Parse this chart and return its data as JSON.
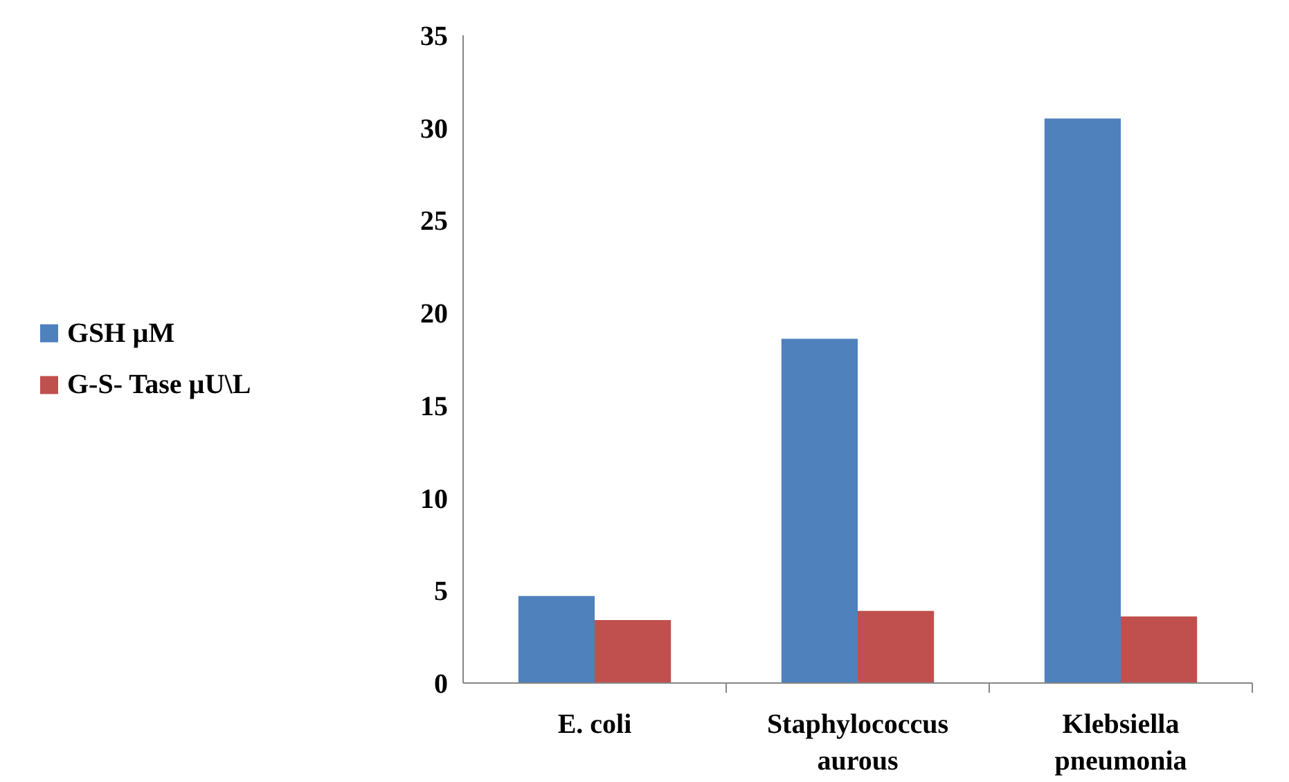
{
  "chart_data": {
    "type": "bar",
    "categories": [
      "E. coli",
      "Staphylococcus aurous",
      "Klebsiella pneumonia"
    ],
    "series": [
      {
        "name": "GSH µM",
        "color": "#4f81bd",
        "values": [
          4.7,
          18.6,
          30.5
        ]
      },
      {
        "name": "G-S- Tase µU\\L",
        "color": "#c0504d",
        "values": [
          3.4,
          3.9,
          3.6
        ]
      }
    ],
    "ylim": [
      0,
      35
    ],
    "yticks": [
      0,
      5,
      10,
      15,
      20,
      25,
      30,
      35
    ],
    "grid": false,
    "legend": "left"
  }
}
